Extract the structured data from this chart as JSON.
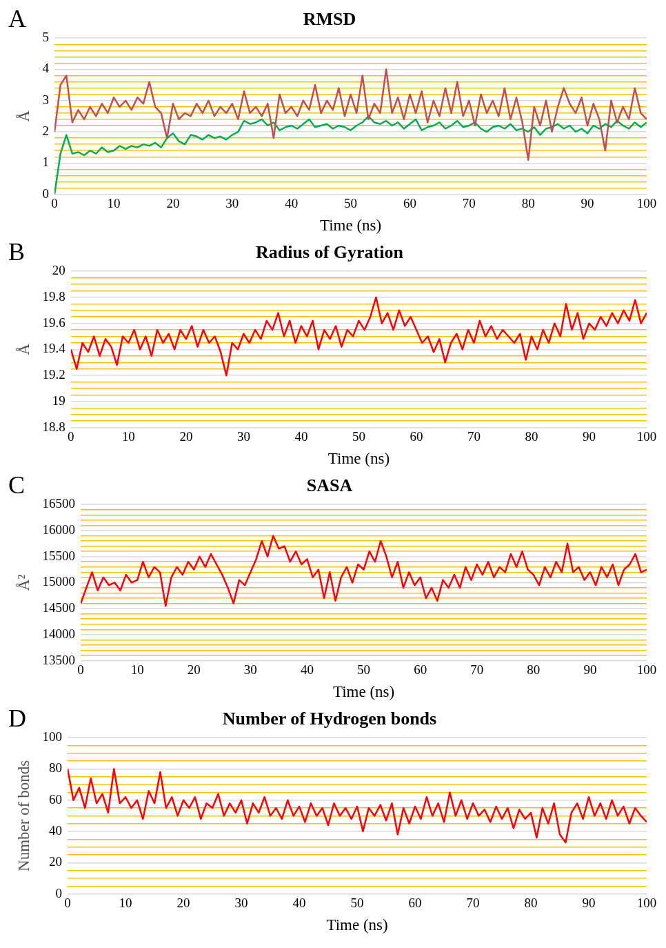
{
  "chart_data": [
    {
      "type": "line",
      "title": "RMSD",
      "xlabel": "Time (ns)",
      "ylabel": "Å",
      "annotations": [
        "A"
      ],
      "grid": "y",
      "marker": "none",
      "line_style": "solid",
      "xlim": [
        0,
        100
      ],
      "xticks": [
        0,
        10,
        20,
        30,
        40,
        50,
        60,
        70,
        80,
        90,
        100
      ],
      "ylim": [
        0,
        5
      ],
      "yticks": [
        0,
        {
          "value": 0.2,
          "label": null
        },
        {
          "value": 0.4,
          "label": null
        },
        {
          "value": 0.6,
          "label": null
        },
        {
          "value": 0.8,
          "label": null
        },
        1,
        {
          "value": 1.2,
          "label": null
        },
        {
          "value": 1.4,
          "label": null
        },
        {
          "value": 1.6,
          "label": null
        },
        {
          "value": 1.8,
          "label": null
        },
        2,
        {
          "value": 2.2,
          "label": null
        },
        {
          "value": 2.4,
          "label": null
        },
        {
          "value": 2.6,
          "label": null
        },
        {
          "value": 2.8,
          "label": null
        },
        3,
        {
          "value": 3.2,
          "label": null
        },
        {
          "value": 3.4,
          "label": null
        },
        {
          "value": 3.6,
          "label": null
        },
        {
          "value": 3.8,
          "label": null
        },
        4,
        {
          "value": 4.2,
          "label": null
        },
        {
          "value": 4.4,
          "label": null
        },
        {
          "value": 4.6,
          "label": null
        },
        {
          "value": 4.8,
          "label": null
        },
        5
      ],
      "x": [
        0,
        1,
        2,
        3,
        4,
        5,
        6,
        7,
        8,
        9,
        10,
        11,
        12,
        13,
        14,
        15,
        16,
        17,
        18,
        19,
        20,
        21,
        22,
        23,
        24,
        25,
        26,
        27,
        28,
        29,
        30,
        31,
        32,
        33,
        34,
        35,
        36,
        37,
        38,
        39,
        40,
        41,
        42,
        43,
        44,
        45,
        46,
        47,
        48,
        49,
        50,
        51,
        52,
        53,
        54,
        55,
        56,
        57,
        58,
        59,
        60,
        61,
        62,
        63,
        64,
        65,
        66,
        67,
        68,
        69,
        70,
        71,
        72,
        73,
        74,
        75,
        76,
        77,
        78,
        79,
        80,
        81,
        82,
        83,
        84,
        85,
        86,
        87,
        88,
        89,
        90,
        91,
        92,
        93,
        94,
        95,
        96,
        97,
        98,
        99,
        100
      ],
      "series": [
        {
          "color": "#c0504d",
          "values": [
            2.0,
            3.5,
            3.8,
            2.3,
            2.7,
            2.4,
            2.8,
            2.5,
            2.9,
            2.6,
            3.1,
            2.8,
            3.0,
            2.7,
            3.1,
            2.9,
            3.6,
            2.8,
            2.6,
            1.8,
            2.9,
            2.4,
            2.6,
            2.5,
            2.9,
            2.6,
            3.0,
            2.5,
            2.8,
            2.6,
            2.9,
            2.4,
            3.3,
            2.6,
            2.8,
            2.5,
            2.9,
            1.8,
            3.2,
            2.6,
            2.8,
            2.5,
            3.0,
            2.7,
            3.5,
            2.6,
            3.0,
            2.7,
            3.4,
            2.5,
            3.2,
            2.6,
            3.8,
            2.4,
            2.9,
            2.6,
            4.0,
            2.6,
            3.1,
            2.4,
            3.2,
            2.6,
            3.3,
            2.3,
            3.0,
            2.5,
            3.4,
            2.6,
            3.6,
            2.5,
            3.0,
            2.2,
            3.2,
            2.6,
            3.0,
            2.5,
            3.4,
            2.4,
            3.1,
            2.3,
            1.1,
            2.8,
            2.2,
            3.0,
            2.0,
            2.8,
            3.4,
            2.9,
            2.6,
            3.1,
            2.2,
            2.9,
            2.4,
            1.4,
            3.0,
            2.3,
            2.8,
            2.4,
            3.4,
            2.6,
            2.4
          ]
        },
        {
          "color": "#00b050",
          "values": [
            0.0,
            1.3,
            1.9,
            1.3,
            1.35,
            1.25,
            1.4,
            1.3,
            1.5,
            1.35,
            1.4,
            1.55,
            1.45,
            1.55,
            1.5,
            1.6,
            1.55,
            1.65,
            1.5,
            1.8,
            1.95,
            1.7,
            1.6,
            1.9,
            1.85,
            1.75,
            1.9,
            1.8,
            1.85,
            1.75,
            1.9,
            2.0,
            2.35,
            2.25,
            2.3,
            2.4,
            2.2,
            2.3,
            2.05,
            2.15,
            2.2,
            2.1,
            2.25,
            2.4,
            2.15,
            2.2,
            2.25,
            2.1,
            2.2,
            2.15,
            2.05,
            2.2,
            2.3,
            2.5,
            2.3,
            2.25,
            2.35,
            2.2,
            2.3,
            2.1,
            2.25,
            2.4,
            2.05,
            2.15,
            2.2,
            2.3,
            2.1,
            2.2,
            2.35,
            2.15,
            2.2,
            2.3,
            2.1,
            2.0,
            2.15,
            2.2,
            2.1,
            2.25,
            2.05,
            2.1,
            2.0,
            2.15,
            1.9,
            2.1,
            2.15,
            2.25,
            2.1,
            2.2,
            2.0,
            2.1,
            1.95,
            2.2,
            2.1,
            2.25,
            2.15,
            2.35,
            2.2,
            2.1,
            2.3,
            2.15,
            2.3
          ]
        }
      ]
    },
    {
      "type": "line",
      "title": "Radius of Gyration",
      "xlabel": "Time (ns)",
      "ylabel": "Å",
      "annotations": [
        "B"
      ],
      "grid": "y",
      "marker": "none",
      "line_style": "solid",
      "xlim": [
        0,
        100
      ],
      "xticks": [
        0,
        10,
        20,
        30,
        40,
        50,
        60,
        70,
        80,
        90,
        100
      ],
      "ylim": [
        18.8,
        20
      ],
      "yticks": [
        18.8,
        {
          "value": 18.85,
          "label": null
        },
        {
          "value": 18.9,
          "label": null
        },
        {
          "value": 18.95,
          "label": null
        },
        19,
        {
          "value": 19.05,
          "label": null
        },
        {
          "value": 19.1,
          "label": null
        },
        {
          "value": 19.15,
          "label": null
        },
        19.2,
        {
          "value": 19.25,
          "label": null
        },
        {
          "value": 19.3,
          "label": null
        },
        {
          "value": 19.35,
          "label": null
        },
        19.4,
        {
          "value": 19.45,
          "label": null
        },
        {
          "value": 19.5,
          "label": null
        },
        {
          "value": 19.55,
          "label": null
        },
        19.6,
        {
          "value": 19.65,
          "label": null
        },
        {
          "value": 19.7,
          "label": null
        },
        {
          "value": 19.75,
          "label": null
        },
        19.8,
        {
          "value": 19.85,
          "label": null
        },
        {
          "value": 19.9,
          "label": null
        },
        {
          "value": 19.95,
          "label": null
        },
        20
      ],
      "x": [
        0,
        1,
        2,
        3,
        4,
        5,
        6,
        7,
        8,
        9,
        10,
        11,
        12,
        13,
        14,
        15,
        16,
        17,
        18,
        19,
        20,
        21,
        22,
        23,
        24,
        25,
        26,
        27,
        28,
        29,
        30,
        31,
        32,
        33,
        34,
        35,
        36,
        37,
        38,
        39,
        40,
        41,
        42,
        43,
        44,
        45,
        46,
        47,
        48,
        49,
        50,
        51,
        52,
        53,
        54,
        55,
        56,
        57,
        58,
        59,
        60,
        61,
        62,
        63,
        64,
        65,
        66,
        67,
        68,
        69,
        70,
        71,
        72,
        73,
        74,
        75,
        76,
        77,
        78,
        79,
        80,
        81,
        82,
        83,
        84,
        85,
        86,
        87,
        88,
        89,
        90,
        91,
        92,
        93,
        94,
        95,
        96,
        97,
        98,
        99,
        100
      ],
      "series": [
        {
          "color": "#ff0000",
          "values": [
            19.4,
            19.25,
            19.45,
            19.38,
            19.5,
            19.35,
            19.48,
            19.42,
            19.28,
            19.5,
            19.45,
            19.55,
            19.4,
            19.5,
            19.35,
            19.55,
            19.45,
            19.52,
            19.4,
            19.55,
            19.48,
            19.58,
            19.42,
            19.55,
            19.45,
            19.5,
            19.38,
            19.2,
            19.45,
            19.4,
            19.52,
            19.45,
            19.55,
            19.48,
            19.62,
            19.55,
            19.68,
            19.5,
            19.62,
            19.45,
            19.58,
            19.5,
            19.62,
            19.4,
            19.55,
            19.48,
            19.58,
            19.42,
            19.55,
            19.5,
            19.62,
            19.55,
            19.65,
            19.8,
            19.6,
            19.68,
            19.55,
            19.7,
            19.58,
            19.65,
            19.55,
            19.45,
            19.5,
            19.38,
            19.48,
            19.3,
            19.45,
            19.52,
            19.4,
            19.55,
            19.45,
            19.62,
            19.5,
            19.58,
            19.48,
            19.55,
            19.5,
            19.45,
            19.52,
            19.32,
            19.5,
            19.4,
            19.55,
            19.45,
            19.6,
            19.5,
            19.75,
            19.55,
            19.68,
            19.48,
            19.6,
            19.55,
            19.65,
            19.58,
            19.68,
            19.6,
            19.7,
            19.62,
            19.78,
            19.6,
            19.68
          ]
        }
      ]
    },
    {
      "type": "line",
      "title": "SASA",
      "xlabel": "Time (ns)",
      "ylabel": "Å²",
      "annotations": [
        "C"
      ],
      "grid": "y",
      "marker": "none",
      "line_style": "solid",
      "xlim": [
        0,
        100
      ],
      "xticks": [
        0,
        10,
        20,
        30,
        40,
        50,
        60,
        70,
        80,
        90,
        100
      ],
      "ylim": [
        13500,
        16500
      ],
      "yticks": [
        13500,
        {
          "value": 13600,
          "label": null
        },
        {
          "value": 13700,
          "label": null
        },
        {
          "value": 13800,
          "label": null
        },
        {
          "value": 13900,
          "label": null
        },
        14000,
        {
          "value": 14100,
          "label": null
        },
        {
          "value": 14200,
          "label": null
        },
        {
          "value": 14300,
          "label": null
        },
        {
          "value": 14400,
          "label": null
        },
        14500,
        {
          "value": 14600,
          "label": null
        },
        {
          "value": 14700,
          "label": null
        },
        {
          "value": 14800,
          "label": null
        },
        {
          "value": 14900,
          "label": null
        },
        15000,
        {
          "value": 15100,
          "label": null
        },
        {
          "value": 15200,
          "label": null
        },
        {
          "value": 15300,
          "label": null
        },
        {
          "value": 15400,
          "label": null
        },
        15500,
        {
          "value": 15600,
          "label": null
        },
        {
          "value": 15700,
          "label": null
        },
        {
          "value": 15800,
          "label": null
        },
        {
          "value": 15900,
          "label": null
        },
        16000,
        {
          "value": 16100,
          "label": null
        },
        {
          "value": 16200,
          "label": null
        },
        {
          "value": 16300,
          "label": null
        },
        {
          "value": 16400,
          "label": null
        },
        16500
      ],
      "x": [
        0,
        1,
        2,
        3,
        4,
        5,
        6,
        7,
        8,
        9,
        10,
        11,
        12,
        13,
        14,
        15,
        16,
        17,
        18,
        19,
        20,
        21,
        22,
        23,
        24,
        25,
        26,
        27,
        28,
        29,
        30,
        31,
        32,
        33,
        34,
        35,
        36,
        37,
        38,
        39,
        40,
        41,
        42,
        43,
        44,
        45,
        46,
        47,
        48,
        49,
        50,
        51,
        52,
        53,
        54,
        55,
        56,
        57,
        58,
        59,
        60,
        61,
        62,
        63,
        64,
        65,
        66,
        67,
        68,
        69,
        70,
        71,
        72,
        73,
        74,
        75,
        76,
        77,
        78,
        79,
        80,
        81,
        82,
        83,
        84,
        85,
        86,
        87,
        88,
        89,
        90,
        91,
        92,
        93,
        94,
        95,
        96,
        97,
        98,
        99,
        100
      ],
      "series": [
        {
          "color": "#ff0000",
          "values": [
            14600,
            14900,
            15200,
            14850,
            15100,
            14950,
            15000,
            14850,
            15150,
            15000,
            15050,
            15400,
            15100,
            15300,
            15200,
            14550,
            15100,
            15300,
            15150,
            15400,
            15250,
            15500,
            15300,
            15550,
            15350,
            15150,
            14900,
            14600,
            15050,
            14950,
            15200,
            15450,
            15800,
            15500,
            15900,
            15650,
            15700,
            15400,
            15600,
            15350,
            15450,
            15100,
            15250,
            14700,
            15200,
            14650,
            15100,
            15300,
            15000,
            15350,
            15250,
            15600,
            15400,
            15800,
            15500,
            15100,
            15400,
            14900,
            15200,
            14950,
            15100,
            14700,
            14900,
            14650,
            15050,
            14900,
            15150,
            14900,
            15300,
            15050,
            15350,
            15150,
            15400,
            15100,
            15300,
            15200,
            15550,
            15300,
            15600,
            15250,
            15150,
            14950,
            15300,
            15100,
            15400,
            15200,
            15750,
            15200,
            15300,
            15050,
            15200,
            14950,
            15300,
            15100,
            15350,
            14950,
            15250,
            15350,
            15550,
            15200,
            15250
          ]
        }
      ]
    },
    {
      "type": "line",
      "title": "Number of Hydrogen bonds",
      "xlabel": "Time (ns)",
      "ylabel": "Number of bonds",
      "annotations": [
        "D"
      ],
      "grid": "y",
      "marker": "none",
      "line_style": "solid",
      "xlim": [
        0,
        100
      ],
      "xticks": [
        0,
        10,
        20,
        30,
        40,
        50,
        60,
        70,
        80,
        90,
        100
      ],
      "ylim": [
        0,
        100
      ],
      "yticks": [
        0,
        {
          "value": 5,
          "label": null
        },
        {
          "value": 10,
          "label": null
        },
        {
          "value": 15,
          "label": null
        },
        20,
        {
          "value": 25,
          "label": null
        },
        {
          "value": 30,
          "label": null
        },
        {
          "value": 35,
          "label": null
        },
        40,
        {
          "value": 45,
          "label": null
        },
        {
          "value": 50,
          "label": null
        },
        {
          "value": 55,
          "label": null
        },
        60,
        {
          "value": 65,
          "label": null
        },
        {
          "value": 70,
          "label": null
        },
        {
          "value": 75,
          "label": null
        },
        80,
        {
          "value": 85,
          "label": null
        },
        {
          "value": 90,
          "label": null
        },
        {
          "value": 95,
          "label": null
        },
        100
      ],
      "x": [
        0,
        1,
        2,
        3,
        4,
        5,
        6,
        7,
        8,
        9,
        10,
        11,
        12,
        13,
        14,
        15,
        16,
        17,
        18,
        19,
        20,
        21,
        22,
        23,
        24,
        25,
        26,
        27,
        28,
        29,
        30,
        31,
        32,
        33,
        34,
        35,
        36,
        37,
        38,
        39,
        40,
        41,
        42,
        43,
        44,
        45,
        46,
        47,
        48,
        49,
        50,
        51,
        52,
        53,
        54,
        55,
        56,
        57,
        58,
        59,
        60,
        61,
        62,
        63,
        64,
        65,
        66,
        67,
        68,
        69,
        70,
        71,
        72,
        73,
        74,
        75,
        76,
        77,
        78,
        79,
        80,
        81,
        82,
        83,
        84,
        85,
        86,
        87,
        88,
        89,
        90,
        91,
        92,
        93,
        94,
        95,
        96,
        97,
        98,
        99,
        100
      ],
      "series": [
        {
          "color": "#ff0000",
          "values": [
            80,
            60,
            68,
            55,
            74,
            58,
            64,
            52,
            80,
            58,
            62,
            55,
            60,
            48,
            66,
            58,
            78,
            55,
            62,
            50,
            60,
            55,
            62,
            48,
            58,
            55,
            64,
            50,
            58,
            52,
            60,
            45,
            58,
            52,
            62,
            50,
            55,
            48,
            60,
            50,
            56,
            46,
            58,
            50,
            55,
            44,
            58,
            50,
            55,
            48,
            56,
            40,
            55,
            50,
            57,
            47,
            58,
            38,
            55,
            45,
            56,
            48,
            62,
            50,
            58,
            46,
            65,
            50,
            60,
            48,
            58,
            50,
            54,
            46,
            56,
            48,
            55,
            42,
            54,
            48,
            52,
            36,
            55,
            45,
            58,
            38,
            33,
            52,
            58,
            48,
            62,
            50,
            58,
            48,
            60,
            50,
            56,
            45,
            55,
            50,
            46
          ]
        }
      ]
    }
  ]
}
